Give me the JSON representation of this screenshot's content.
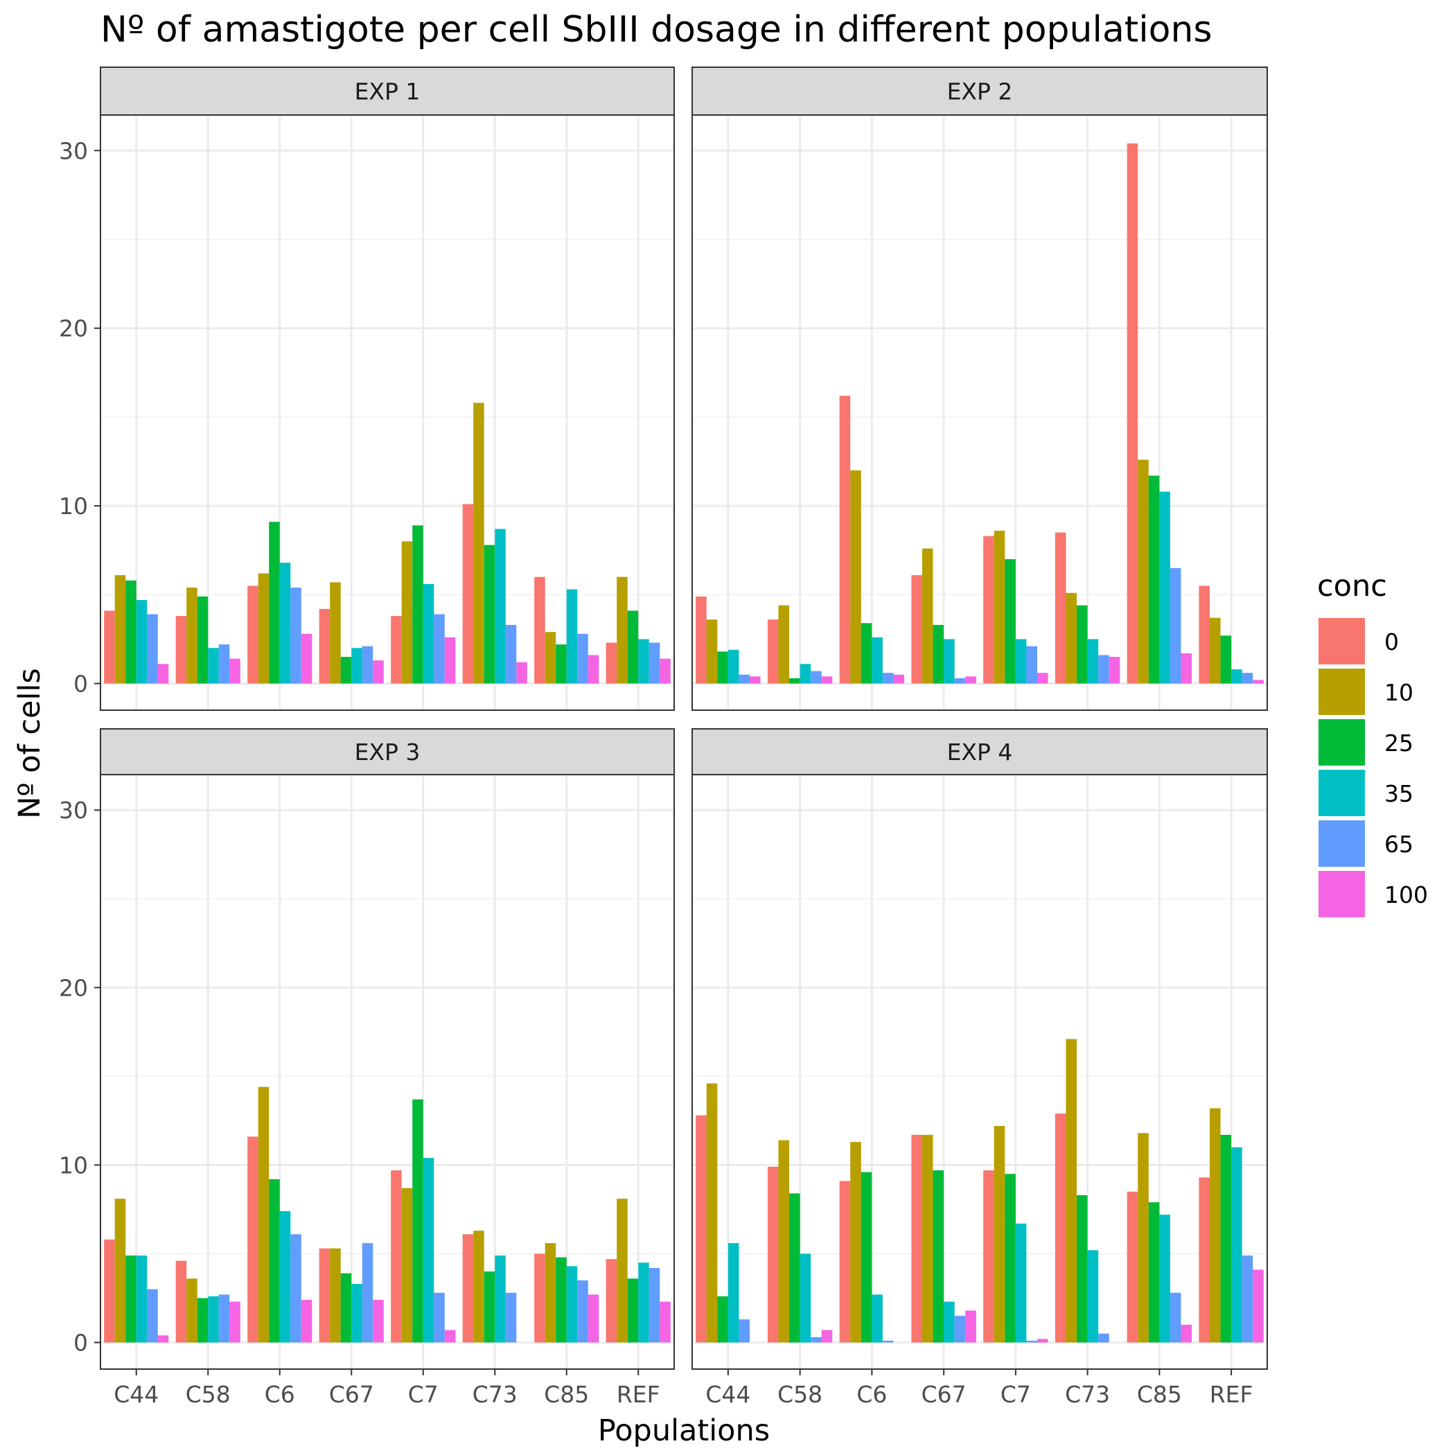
{
  "chart_data": {
    "type": "bar",
    "title": "Nº of amastigote per cell SbIII dosage in different populations",
    "xlabel": "Populations",
    "ylabel": "Nº of cells",
    "ylim": [
      -1.5,
      32
    ],
    "y_ticks": [
      0,
      10,
      20,
      30
    ],
    "grid": true,
    "legend_position": "right",
    "legend_title": "conc",
    "categories": [
      "C44",
      "C58",
      "C6",
      "C67",
      "C7",
      "C73",
      "C85",
      "REF"
    ],
    "series": [
      {
        "name": "0",
        "color": "#F8766D"
      },
      {
        "name": "10",
        "color": "#B79F00"
      },
      {
        "name": "25",
        "color": "#00BA38"
      },
      {
        "name": "35",
        "color": "#00BFC4"
      },
      {
        "name": "65",
        "color": "#619CFF"
      },
      {
        "name": "100",
        "color": "#F564E3"
      }
    ],
    "panels": [
      {
        "label": "EXP 1",
        "values": [
          [
            4.1,
            6.1,
            5.8,
            4.7,
            3.9,
            1.1
          ],
          [
            3.8,
            5.4,
            4.9,
            2.0,
            2.2,
            1.4
          ],
          [
            5.5,
            6.2,
            9.1,
            6.8,
            5.4,
            2.8
          ],
          [
            4.2,
            5.7,
            1.5,
            2.0,
            2.1,
            1.3
          ],
          [
            3.8,
            8.0,
            8.9,
            5.6,
            3.9,
            2.6
          ],
          [
            10.1,
            15.8,
            7.8,
            8.7,
            3.3,
            1.2
          ],
          [
            6.0,
            2.9,
            2.2,
            5.3,
            2.8,
            1.6
          ],
          [
            2.3,
            6.0,
            4.1,
            2.5,
            2.3,
            1.4
          ]
        ]
      },
      {
        "label": "EXP 2",
        "values": [
          [
            4.9,
            3.6,
            1.8,
            1.9,
            0.5,
            0.4
          ],
          [
            3.6,
            4.4,
            0.3,
            1.1,
            0.7,
            0.4
          ],
          [
            16.2,
            12.0,
            3.4,
            2.6,
            0.6,
            0.5
          ],
          [
            6.1,
            7.6,
            3.3,
            2.5,
            0.3,
            0.4
          ],
          [
            8.3,
            8.6,
            7.0,
            2.5,
            2.1,
            0.6
          ],
          [
            8.5,
            5.1,
            4.4,
            2.5,
            1.6,
            1.5
          ],
          [
            30.4,
            12.6,
            11.7,
            10.8,
            6.5,
            1.7
          ],
          [
            5.5,
            3.7,
            2.7,
            0.8,
            0.6,
            0.2
          ]
        ]
      },
      {
        "label": "EXP 3",
        "values": [
          [
            5.8,
            8.1,
            4.9,
            4.9,
            3.0,
            0.4
          ],
          [
            4.6,
            3.6,
            2.5,
            2.6,
            2.7,
            2.3
          ],
          [
            11.6,
            14.4,
            9.2,
            7.4,
            6.1,
            2.4
          ],
          [
            5.3,
            5.3,
            3.9,
            3.3,
            5.6,
            2.4
          ],
          [
            9.7,
            8.7,
            13.7,
            10.4,
            2.8,
            0.7
          ],
          [
            6.1,
            6.3,
            4.0,
            4.9,
            2.8,
            0.0
          ],
          [
            5.0,
            5.6,
            4.8,
            4.3,
            3.5,
            2.7
          ],
          [
            4.7,
            8.1,
            3.6,
            4.5,
            4.2,
            2.3
          ]
        ]
      },
      {
        "label": "EXP 4",
        "values": [
          [
            12.8,
            14.6,
            2.6,
            5.6,
            1.3,
            0.0
          ],
          [
            9.9,
            11.4,
            8.4,
            5.0,
            0.3,
            0.7
          ],
          [
            9.1,
            11.3,
            9.6,
            2.7,
            0.1,
            0.0
          ],
          [
            11.7,
            11.7,
            9.7,
            2.3,
            1.5,
            1.8
          ],
          [
            9.7,
            12.2,
            9.5,
            6.7,
            0.1,
            0.2
          ],
          [
            12.9,
            17.1,
            8.3,
            5.2,
            0.5,
            0.0
          ],
          [
            8.5,
            11.8,
            7.9,
            7.2,
            2.8,
            1.0
          ],
          [
            9.3,
            13.2,
            11.7,
            11.0,
            4.9,
            4.1
          ]
        ]
      }
    ]
  }
}
